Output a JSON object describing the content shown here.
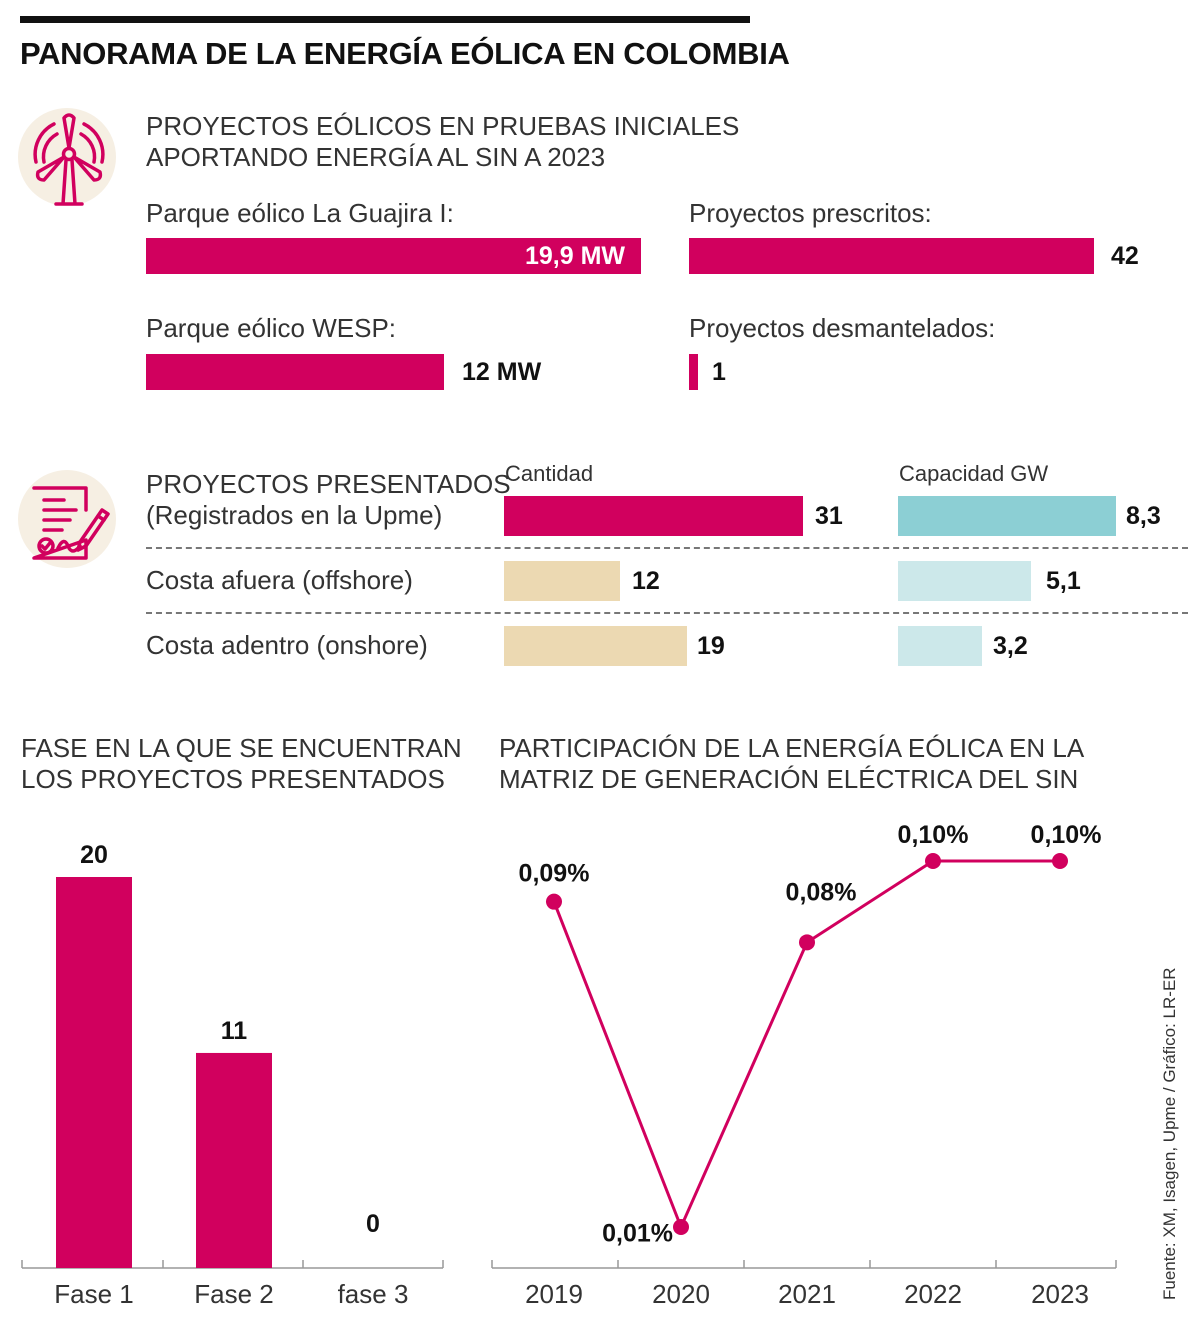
{
  "title": "PANORAMA DE LA ENERGÍA EÓLICA EN COLOMBIA",
  "section1": {
    "heading_line1": "PROYECTOS EÓLICOS EN PRUEBAS INICIALES",
    "heading_line2": "APORTANDO ENERGÍA AL SIN A 2023",
    "icon": "wind-turbine-icon"
  },
  "section2": {
    "heading_line1": "PROYECTOS PRESENTADOS",
    "heading_line2": "(Registrados en la Upme)",
    "icon": "contract-document-icon"
  },
  "section3": {
    "heading_line1": "FASE EN LA QUE SE ENCUENTRAN",
    "heading_line2": "LOS PROYECTOS PRESENTADOS"
  },
  "section4": {
    "heading_line1": "PARTICIPACIÓN DE LA ENERGÍA EÓLICA EN LA",
    "heading_line2": "MATRIZ DE GENERACIÓN ELÉCTRICA DEL SIN"
  },
  "source": "Fuente: XM, Isagen, Upme / Gráfico: LR-ER",
  "colors": {
    "magenta": "#d1005e",
    "teal": "#8ccfd4",
    "light_teal": "#cce8ea",
    "tan": "#ecd9b2",
    "icon_bg": "#f6efe3"
  },
  "chart_data": [
    {
      "type": "bar",
      "orientation": "horizontal",
      "series": [
        {
          "name": "Parque eólico La Guajira I:",
          "values": [
            19.9
          ],
          "label": "19,9 MW"
        },
        {
          "name": "Parque eólico WESP:",
          "values": [
            12
          ],
          "label": "12 MW"
        }
      ]
    },
    {
      "type": "bar",
      "orientation": "horizontal",
      "series": [
        {
          "name": "Proyectos prescritos:",
          "values": [
            42
          ],
          "label": "42"
        },
        {
          "name": "Proyectos desmantelados:",
          "values": [
            1
          ],
          "label": "1"
        }
      ]
    },
    {
      "type": "bar",
      "orientation": "horizontal",
      "categories": [
        "PROYECTOS PRESENTADOS",
        "Costa afuera (offshore)",
        "Costa adentro (onshore)"
      ],
      "category_labels": [
        "",
        "Costa afuera (offshore)",
        "Costa adentro (onshore)"
      ],
      "series": [
        {
          "name": "Cantidad",
          "values": [
            31,
            12,
            19
          ],
          "labels": [
            "31",
            "12",
            "19"
          ]
        },
        {
          "name": "Capacidad GW",
          "values": [
            8.3,
            5.1,
            3.2
          ],
          "labels": [
            "8,3",
            "5,1",
            "3,2"
          ]
        }
      ]
    },
    {
      "type": "bar",
      "categories": [
        "Fase 1",
        "Fase 2",
        "fase 3"
      ],
      "values": [
        20,
        11,
        0
      ],
      "labels": [
        "20",
        "11",
        "0"
      ]
    },
    {
      "type": "line",
      "x": [
        "2019",
        "2020",
        "2021",
        "2022",
        "2023"
      ],
      "values": [
        0.09,
        0.01,
        0.08,
        0.1,
        0.1
      ],
      "labels": [
        "0,09%",
        "0,01%",
        "0,08%",
        "0,10%",
        "0,10%"
      ]
    }
  ]
}
